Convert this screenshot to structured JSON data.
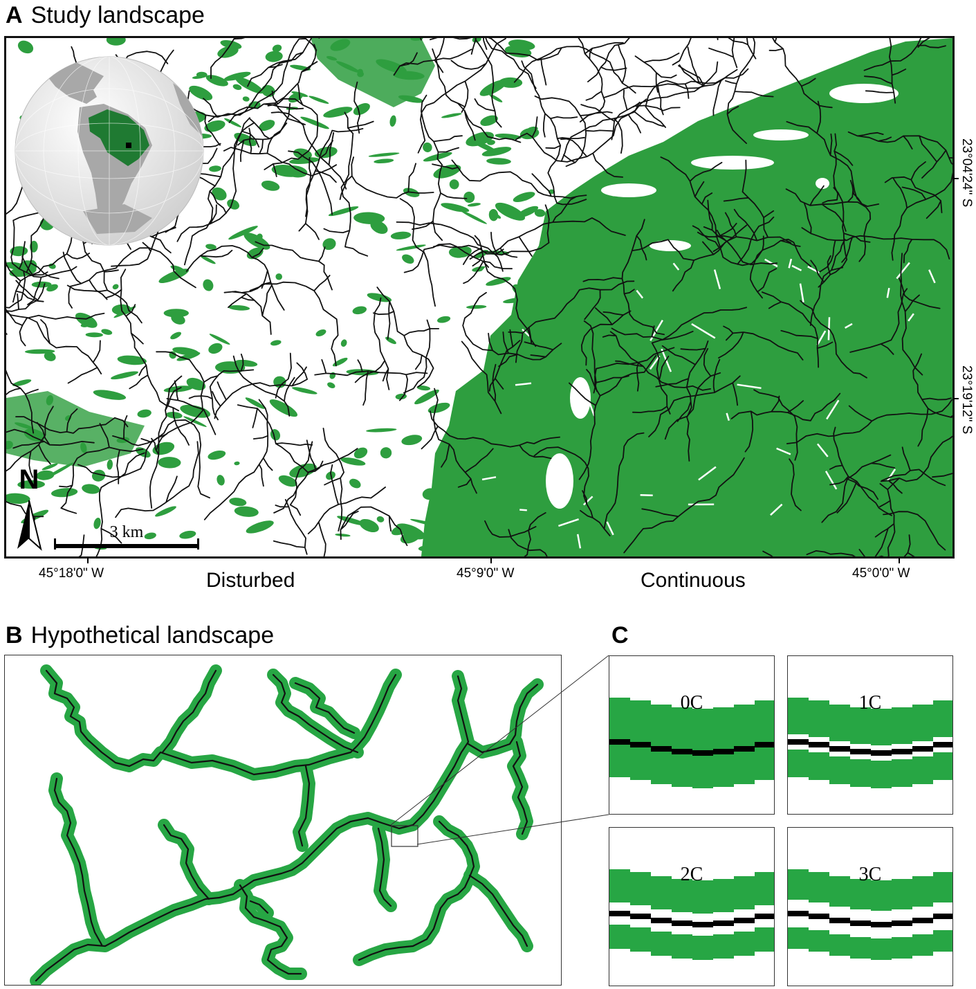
{
  "panel_a": {
    "letter": "A",
    "title": "Study landscape",
    "scale_label": "3 km",
    "north_label": "N",
    "x_coords": [
      "45°18'0\" W",
      "45°9'0\" W",
      "45°0'0\" W"
    ],
    "y_coords": [
      "23°04'24\" S",
      "23°19'12\" S"
    ],
    "landscape_labels": [
      "Disturbed",
      "Continuous"
    ],
    "colors": {
      "forest": "#2e9e3f",
      "stream": "#111111",
      "inset_country": "#1f7a32",
      "inset_land": "#a8a8a8",
      "inset_ocean": "#e6e6e6"
    }
  },
  "panel_b": {
    "letter": "B",
    "title": "Hypothetical landscape",
    "colors": {
      "buffer": "#27a644",
      "stream": "#111111"
    }
  },
  "panel_c": {
    "letter": "C",
    "labels": [
      "0C",
      "1C",
      "2C",
      "3C"
    ],
    "colors": {
      "buffer": "#27a644",
      "gap": "#ffffff",
      "stream": "#000000"
    }
  }
}
